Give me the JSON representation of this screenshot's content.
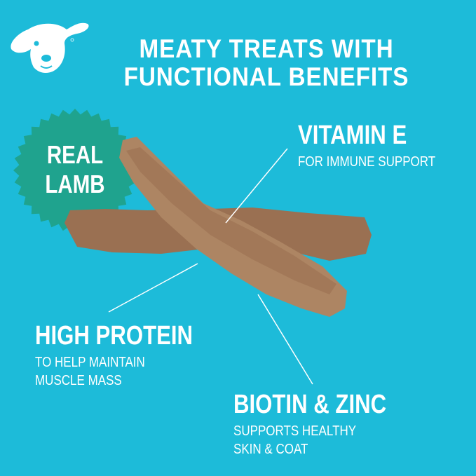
{
  "title": {
    "line1": "MEATY TREATS WITH",
    "line2": "FUNCTIONAL BENEFITS"
  },
  "badge": {
    "line1": "REAL",
    "line2": "LAMB"
  },
  "callouts": [
    {
      "heading": "VITAMIN E",
      "lines": [
        "FOR IMMUNE SUPPORT"
      ]
    },
    {
      "heading": "HIGH PROTEIN",
      "lines": [
        "TO HELP MAINTAIN",
        "MUSCLE MASS"
      ]
    },
    {
      "heading": "BIOTIN & ZINC",
      "lines": [
        "SUPPORTS HEALTHY",
        "SKIN & COAT"
      ]
    }
  ],
  "logo": {
    "icon": "dog-head-logo-icon",
    "mark": "®"
  },
  "colors": {
    "background": "#1dbbd9",
    "badge": "#1fa38e",
    "treat": "#a47a5a",
    "text": "#ffffff"
  }
}
